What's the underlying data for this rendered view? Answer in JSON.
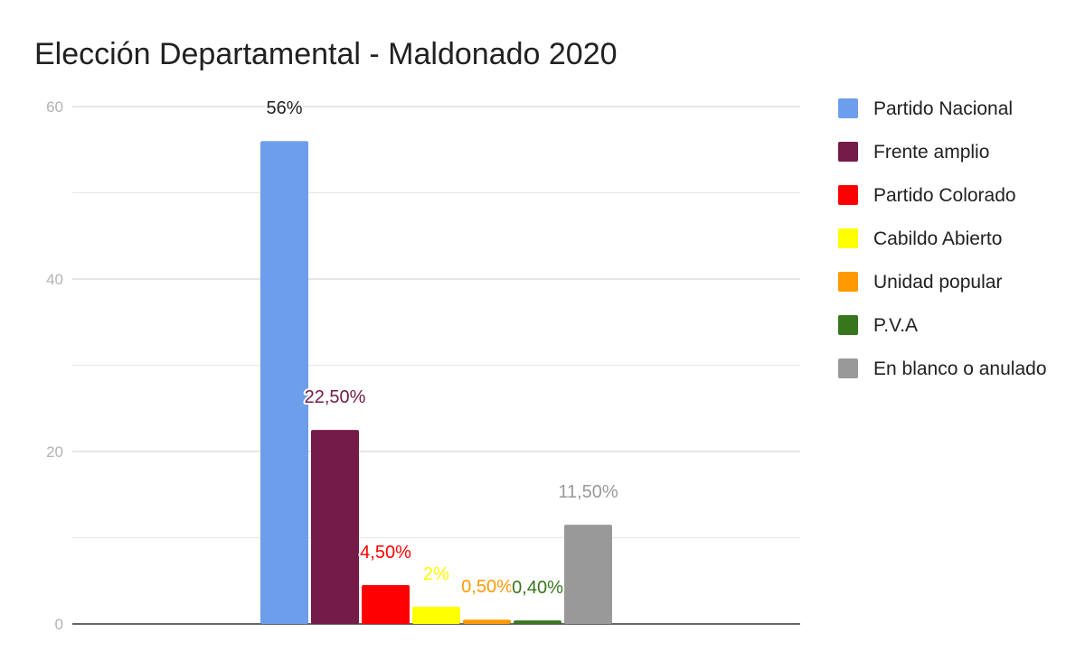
{
  "chart_data": {
    "type": "bar",
    "title": "Elección Departamental - Maldonado 2020",
    "xlabel": "",
    "ylabel": "",
    "ylim": [
      0,
      60
    ],
    "yticks": [
      0,
      20,
      40,
      60
    ],
    "grid": true,
    "legend_position": "right",
    "series": [
      {
        "name": "Partido Nacional",
        "value": 56,
        "label": "56%",
        "color": "#6d9eeb",
        "label_color": "#212121"
      },
      {
        "name": "Frente amplio",
        "value": 22.5,
        "label": "22,50%",
        "color": "#741b47",
        "label_color": "#741b47"
      },
      {
        "name": "Partido Colorado",
        "value": 4.5,
        "label": "4,50%",
        "color": "#ff0000",
        "label_color": "#ff0000"
      },
      {
        "name": "Cabildo Abierto",
        "value": 2,
        "label": "2%",
        "color": "#ffff00",
        "label_color": "#ffff00"
      },
      {
        "name": "Unidad popular",
        "value": 0.5,
        "label": "0,50%",
        "color": "#ff9900",
        "label_color": "#ff9900"
      },
      {
        "name": "P.V.A",
        "value": 0.4,
        "label": "0,40%",
        "color": "#38761d",
        "label_color": "#38761d"
      },
      {
        "name": "En blanco o anulado",
        "value": 11.5,
        "label": "11,50%",
        "color": "#999999",
        "label_color": "#999999"
      }
    ]
  }
}
